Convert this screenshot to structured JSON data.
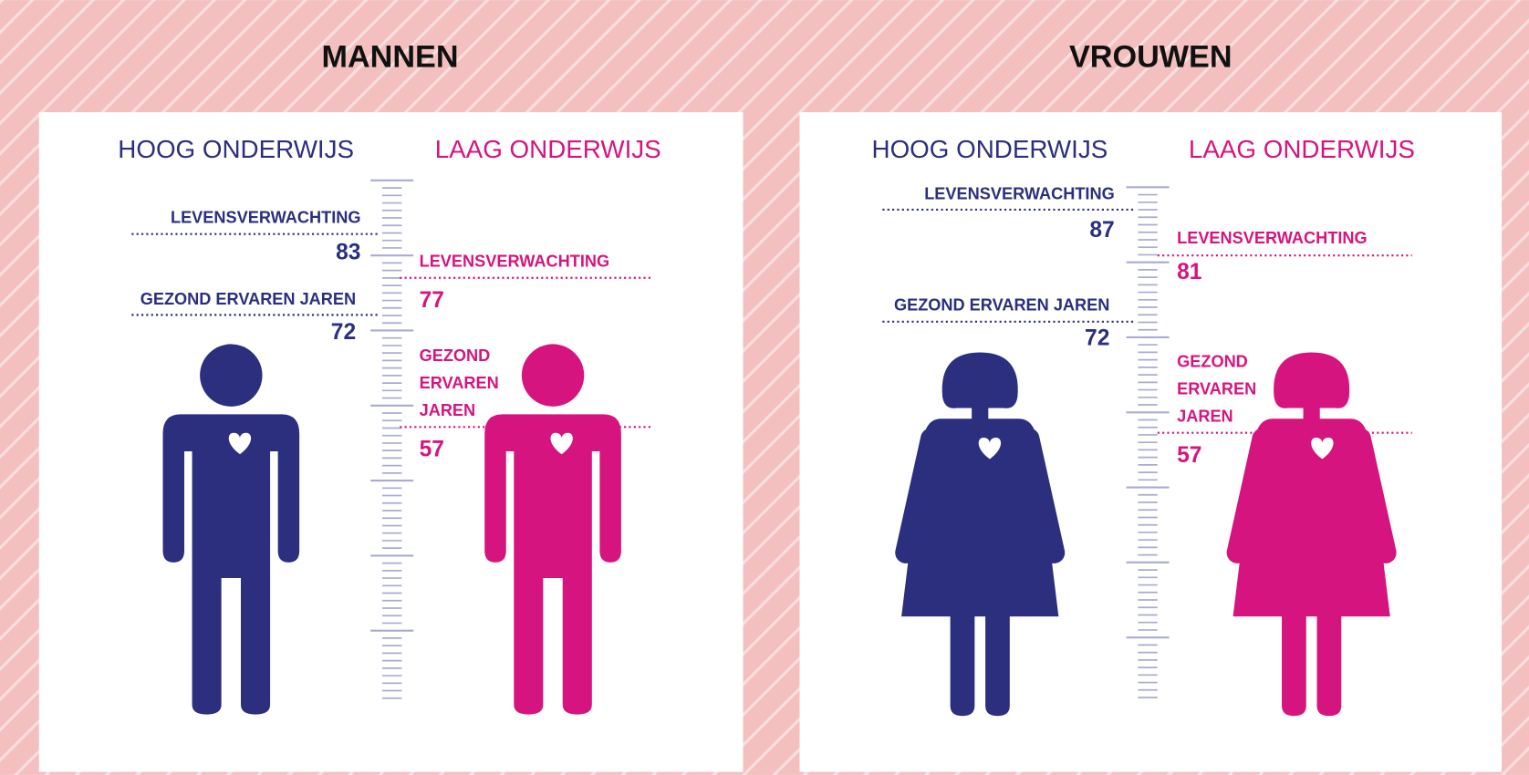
{
  "panels": [
    {
      "title": "MANNEN",
      "columns": [
        {
          "heading": "HOOG ONDERWIJS",
          "life_expectancy": {
            "label": "LEVENSVERWACHTING",
            "value": 83
          },
          "healthy_years": {
            "label": [
              "GEZOND ERVAREN JAREN"
            ],
            "value": 72
          }
        },
        {
          "heading": "LAAG ONDERWIJS",
          "life_expectancy": {
            "label": "LEVENSVERWACHTING",
            "value": 77
          },
          "healthy_years": {
            "label": [
              "GEZOND",
              "ERVAREN",
              "JAREN"
            ],
            "value": 57
          }
        }
      ]
    },
    {
      "title": "VROUWEN",
      "columns": [
        {
          "heading": "HOOG ONDERWIJS",
          "life_expectancy": {
            "label": "LEVENSVERWACHTING",
            "value": 87
          },
          "healthy_years": {
            "label": [
              "GEZOND ERVAREN JAREN"
            ],
            "value": 72
          }
        },
        {
          "heading": "LAAG ONDERWIJS",
          "life_expectancy": {
            "label": "LEVENSVERWACHTING",
            "value": 81
          },
          "healthy_years": {
            "label": [
              "GEZOND",
              "ERVAREN",
              "JAREN"
            ],
            "value": 57
          }
        }
      ]
    }
  ]
}
